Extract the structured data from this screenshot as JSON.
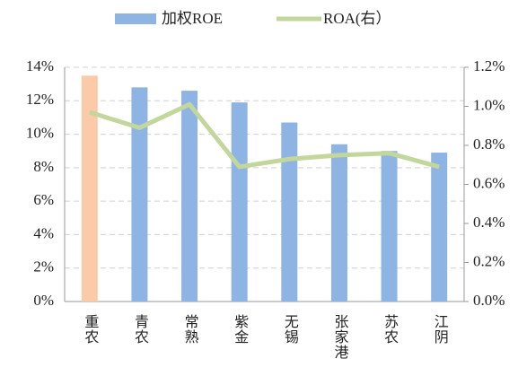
{
  "chart_data": {
    "type": "bar_line",
    "categories": [
      "重农",
      "青农",
      "常熟",
      "紫金",
      "无锡",
      "张家港",
      "苏农",
      "江阴"
    ],
    "series": [
      {
        "name": "加权ROE",
        "type": "bar",
        "color": "#8eb4e3",
        "colors": [
          "#fbcba9",
          "#8eb4e3",
          "#8eb4e3",
          "#8eb4e3",
          "#8eb4e3",
          "#8eb4e3",
          "#8eb4e3",
          "#8eb4e3"
        ],
        "values": [
          13.5,
          12.8,
          12.6,
          11.9,
          10.7,
          9.4,
          9.0,
          8.9
        ]
      },
      {
        "name": "ROA(右）",
        "type": "line",
        "axis": "y2",
        "color": "#c3d69b",
        "values": [
          0.97,
          0.89,
          1.01,
          0.69,
          0.73,
          0.75,
          0.76,
          0.69
        ]
      }
    ],
    "ylim": [
      0,
      14
    ],
    "yticks": [
      {
        "value": 0,
        "label": "0%"
      },
      {
        "value": 2,
        "label": "2%"
      },
      {
        "value": 4,
        "label": "4%"
      },
      {
        "value": 6,
        "label": "6%"
      },
      {
        "value": 8,
        "label": "8%"
      },
      {
        "value": 10,
        "label": "10%"
      },
      {
        "value": 12,
        "label": "12%"
      },
      {
        "value": 14,
        "label": "14%"
      }
    ],
    "y2lim": [
      0,
      1.2
    ],
    "y2ticks": [
      {
        "value": 0,
        "label": "0.0%"
      },
      {
        "value": 0.2,
        "label": "0.2%"
      },
      {
        "value": 0.4,
        "label": "0.4%"
      },
      {
        "value": 0.6,
        "label": "0.6%"
      },
      {
        "value": 0.8,
        "label": "0.8%"
      },
      {
        "value": 1.0,
        "label": "1.0%"
      },
      {
        "value": 1.2,
        "label": "1.2%"
      }
    ],
    "grid": true,
    "legend": "top"
  }
}
